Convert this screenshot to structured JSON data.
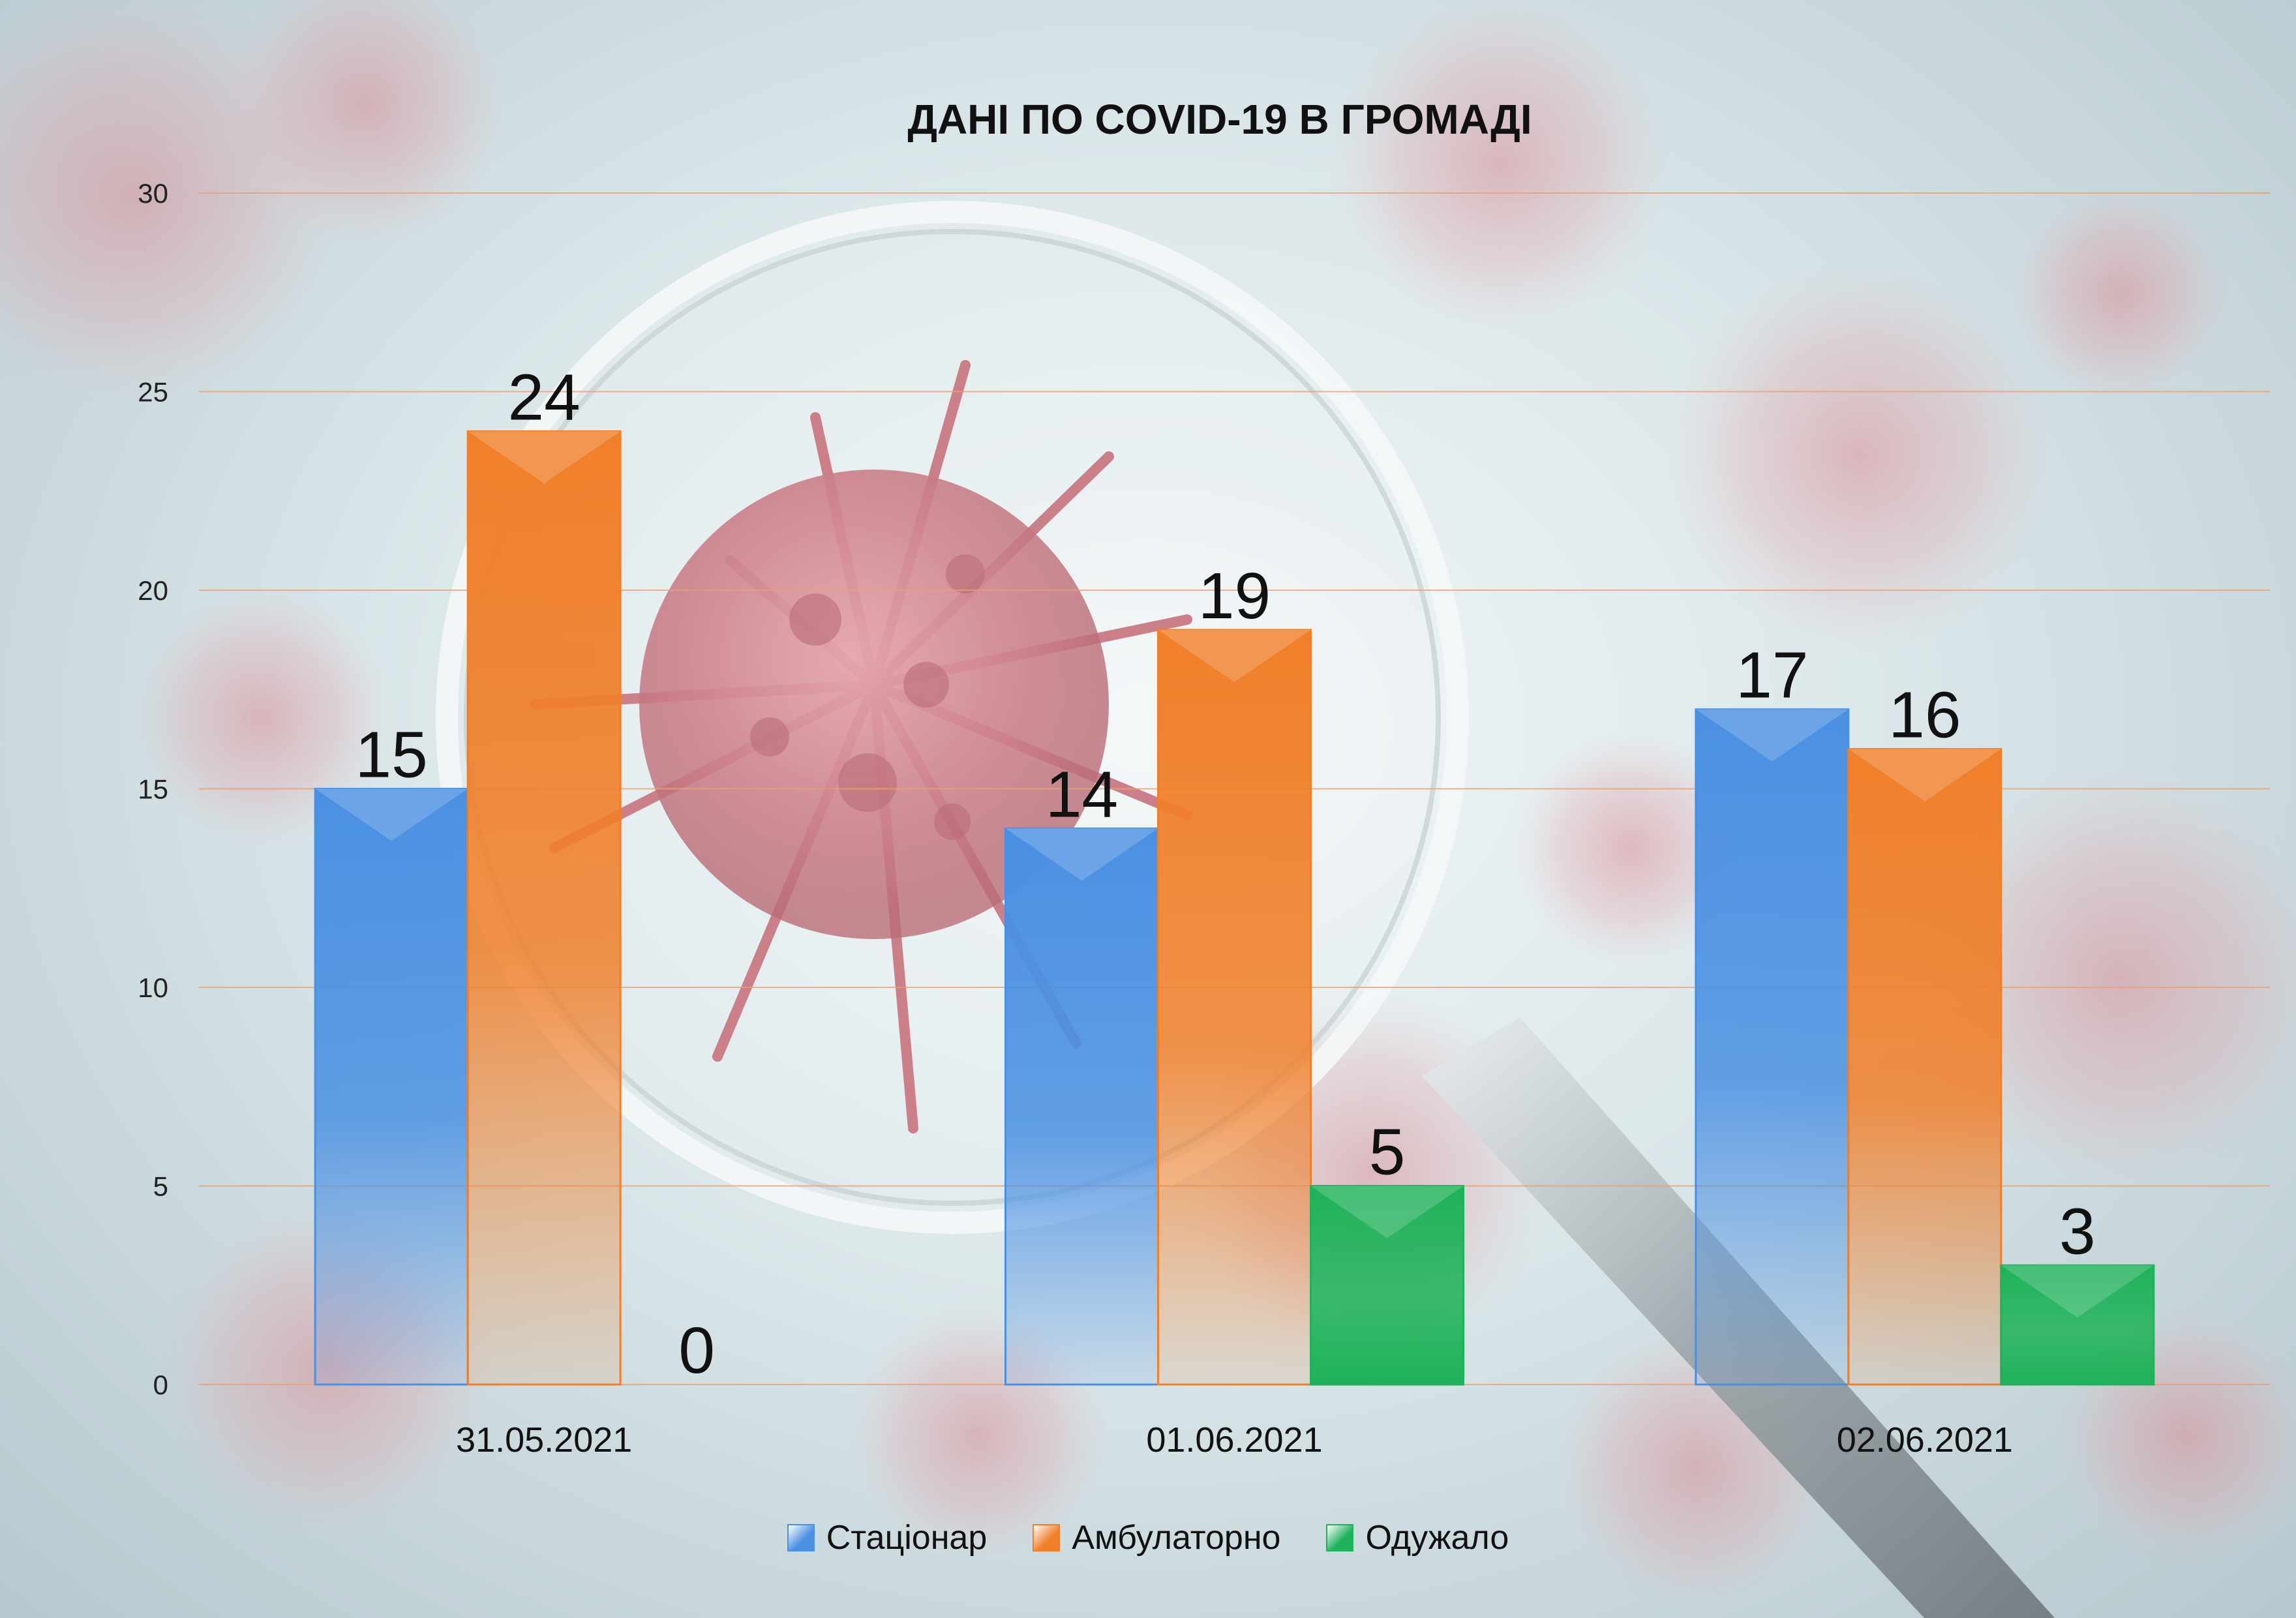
{
  "chart_data": {
    "type": "bar",
    "title": "ДАНІ ПО COVID-19 В ГРОМАДІ",
    "categories": [
      "31.05.2021",
      "01.06.2021",
      "02.06.2021"
    ],
    "series": [
      {
        "name": "Стаціонар",
        "values": [
          15,
          14,
          17
        ],
        "color": "#4a90e2"
      },
      {
        "name": "Амбулаторно",
        "values": [
          24,
          19,
          16
        ],
        "color": "#f07f2a"
      },
      {
        "name": "Одужало",
        "values": [
          0,
          5,
          3
        ],
        "color": "#1fb25a"
      }
    ],
    "ylim": [
      0,
      30
    ],
    "yticks": [
      0,
      5,
      10,
      15,
      20,
      25,
      30
    ],
    "grid": true,
    "legend": "bottom",
    "data_labels": true
  }
}
